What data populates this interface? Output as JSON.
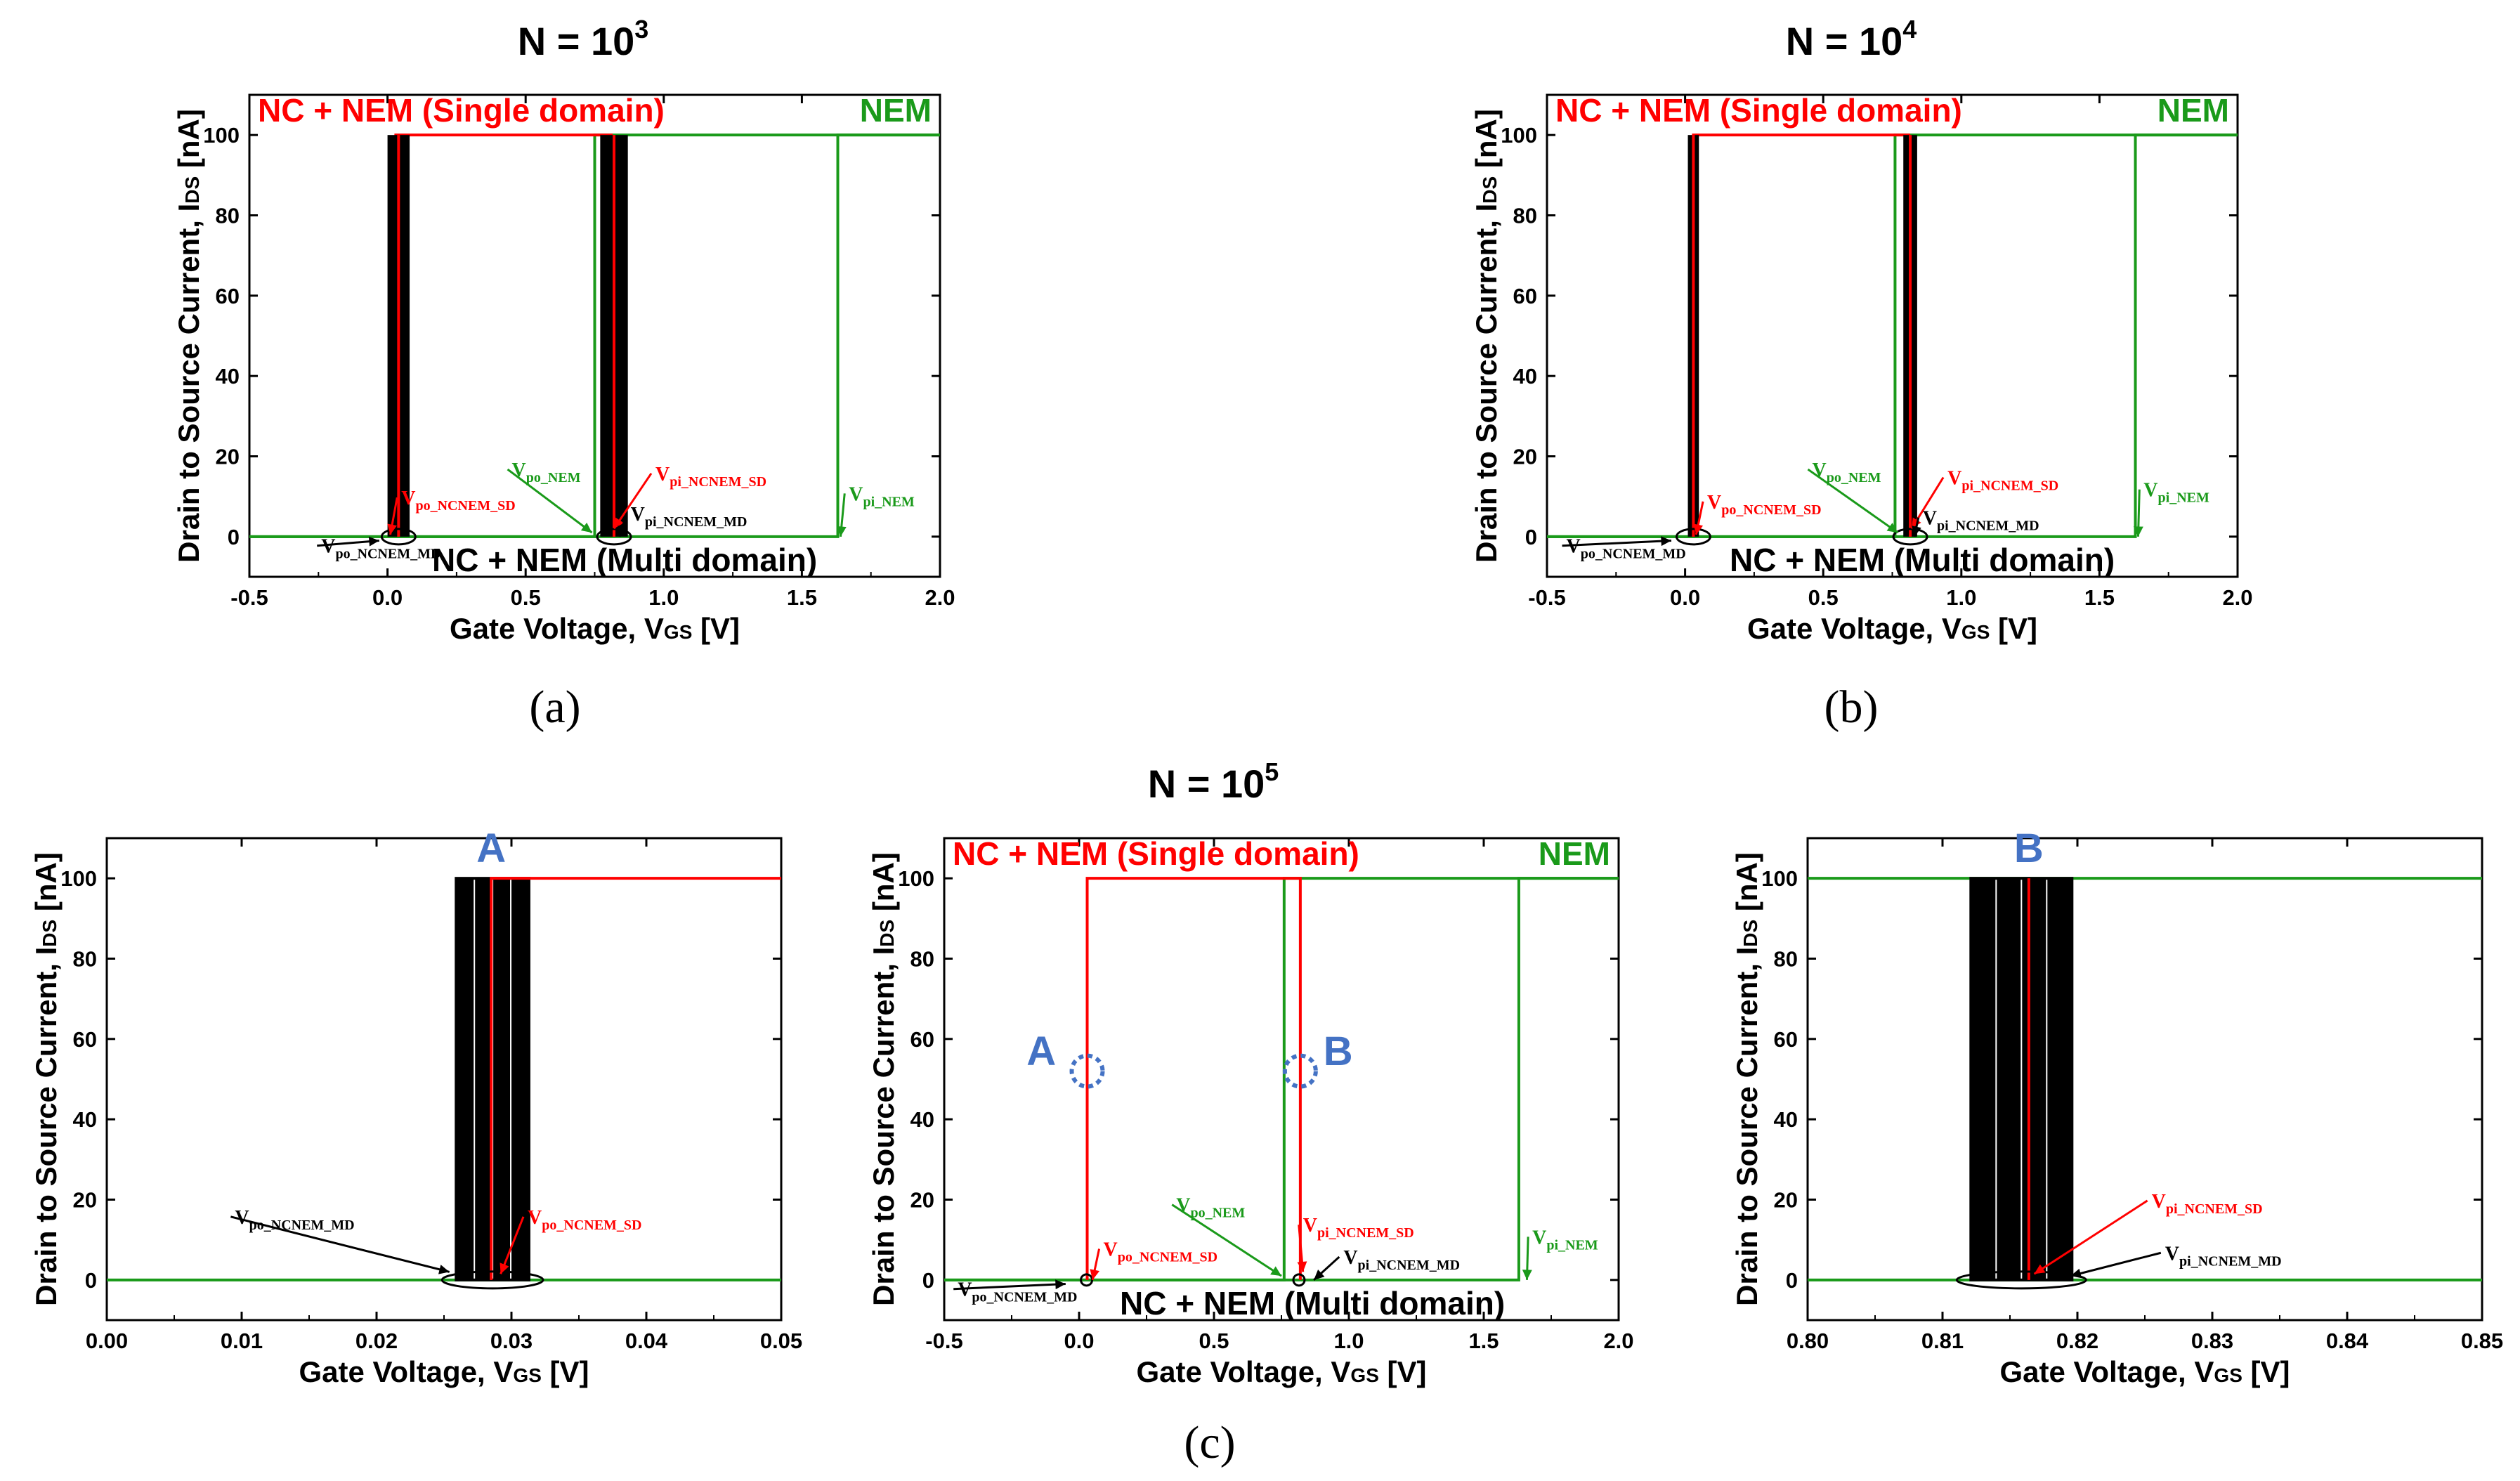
{
  "colors": {
    "single_domain": "#ff0000",
    "nem": "#1a9a1a",
    "multi_domain": "#000000",
    "marker": "#4472c4"
  },
  "titles": {
    "a": "N = 10",
    "a_exp": "3",
    "b": "N = 10",
    "b_exp": "4",
    "c": "N = 10",
    "c_exp": "5"
  },
  "subfigure_labels": {
    "a": "(a)",
    "b": "(b)",
    "c": "(c)"
  },
  "chart_data": [
    {
      "id": "a",
      "type": "line",
      "title": "N = 10^3",
      "xlabel": "Gate Voltage, V",
      "xlabel_sub": "GS",
      "xlabel_unit": " [V]",
      "ylabel": "Drain to Source Current, I",
      "ylabel_sub": "DS",
      "ylabel_unit": " [nA]",
      "xlim": [
        -0.5,
        2.0
      ],
      "ylim": [
        -10,
        110
      ],
      "xticks": [
        "-0.5",
        "0.0",
        "0.5",
        "1.0",
        "1.5",
        "2.0"
      ],
      "yticks": [
        "0",
        "20",
        "40",
        "60",
        "80",
        "100"
      ],
      "legend": [
        "NC + NEM (Single domain)",
        "NEM",
        "NC + NEM (Multi domain)"
      ],
      "series": [
        {
          "name": "NEM",
          "hysteresis": {
            "v_on": 1.63,
            "v_off": 0.75,
            "i_low": 0,
            "i_high": 100
          }
        },
        {
          "name": "NC + NEM (Single domain)",
          "hysteresis": {
            "v_on": 0.81,
            "v_off": 0.03,
            "i_low": 0,
            "i_high": 100
          }
        },
        {
          "name": "NC + NEM (Multi domain)",
          "bands": [
            [
              0.0,
              0.08
            ],
            [
              0.77,
              0.87
            ]
          ],
          "i_low": 0,
          "i_high": 100
        }
      ],
      "annotations": [
        {
          "text": "V",
          "sub": "po_NCNEM_MD",
          "series": "multi"
        },
        {
          "text": "V",
          "sub": "po_NCNEM_SD",
          "series": "single"
        },
        {
          "text": "V",
          "sub": "po_NEM",
          "series": "nem"
        },
        {
          "text": "V",
          "sub": "pi_NCNEM_SD",
          "series": "single"
        },
        {
          "text": "V",
          "sub": "pi_NCNEM_MD",
          "series": "multi"
        },
        {
          "text": "V",
          "sub": "pi_NEM",
          "series": "nem"
        }
      ]
    },
    {
      "id": "b",
      "type": "line",
      "title": "N = 10^4",
      "xlabel": "Gate Voltage, V",
      "xlabel_sub": "GS",
      "xlabel_unit": " [V]",
      "ylabel": "Drain to Source Current, I",
      "ylabel_sub": "DS",
      "ylabel_unit": " [nA]",
      "xlim": [
        -0.5,
        2.0
      ],
      "ylim": [
        -10,
        110
      ],
      "xticks": [
        "-0.5",
        "0.0",
        "0.5",
        "1.0",
        "1.5",
        "2.0"
      ],
      "yticks": [
        "0",
        "20",
        "40",
        "60",
        "80",
        "100"
      ],
      "legend": [
        "NC + NEM (Single domain)",
        "NEM",
        "NC + NEM (Multi domain)"
      ],
      "series": [
        {
          "name": "NEM",
          "hysteresis": {
            "v_on": 1.63,
            "v_off": 0.76,
            "i_low": 0,
            "i_high": 100
          }
        },
        {
          "name": "NC + NEM (Single domain)",
          "hysteresis": {
            "v_on": 0.81,
            "v_off": 0.03,
            "i_low": 0,
            "i_high": 100
          }
        },
        {
          "name": "NC + NEM (Multi domain)",
          "bands": [
            [
              0.01,
              0.05
            ],
            [
              0.79,
              0.84
            ]
          ],
          "i_low": 0,
          "i_high": 100
        }
      ],
      "annotations": [
        {
          "text": "V",
          "sub": "po_NCNEM_MD",
          "series": "multi"
        },
        {
          "text": "V",
          "sub": "po_NCNEM_SD",
          "series": "single"
        },
        {
          "text": "V",
          "sub": "po_NEM",
          "series": "nem"
        },
        {
          "text": "V",
          "sub": "pi_NCNEM_SD",
          "series": "single"
        },
        {
          "text": "V",
          "sub": "pi_NCNEM_MD",
          "series": "multi"
        },
        {
          "text": "V",
          "sub": "pi_NEM",
          "series": "nem"
        }
      ]
    },
    {
      "id": "c_left",
      "type": "line",
      "title": "",
      "xlabel": "Gate Voltage, V",
      "xlabel_sub": "GS",
      "xlabel_unit": " [V]",
      "ylabel": "Drain to Source Current, I",
      "ylabel_sub": "DS",
      "ylabel_unit": " [nA]",
      "xlim": [
        0.0,
        0.05
      ],
      "ylim": [
        -10,
        110
      ],
      "xticks": [
        "0.00",
        "0.01",
        "0.02",
        "0.03",
        "0.04",
        "0.05"
      ],
      "yticks": [
        "0",
        "20",
        "40",
        "60",
        "80",
        "100"
      ],
      "marker": "A",
      "series": [
        {
          "name": "NC + NEM (Single domain)",
          "step_at": 0.0285,
          "i_low": 0,
          "i_high": 100
        },
        {
          "name": "NEM",
          "level": 0
        },
        {
          "name": "NC + NEM (Multi domain)",
          "band": [
            0.0259,
            0.0313
          ]
        }
      ],
      "annotations": [
        {
          "text": "V",
          "sub": "po_NCNEM_MD",
          "series": "multi"
        },
        {
          "text": "V",
          "sub": "po_NCNEM_SD",
          "series": "single"
        }
      ]
    },
    {
      "id": "c_mid",
      "type": "line",
      "title": "N = 10^5",
      "xlabel": "Gate Voltage, V",
      "xlabel_sub": "GS",
      "xlabel_unit": " [V]",
      "ylabel": "Drain to Source Current, I",
      "ylabel_sub": "DS",
      "ylabel_unit": " [nA]",
      "xlim": [
        -0.5,
        2.0
      ],
      "ylim": [
        -10,
        110
      ],
      "xticks": [
        "-0.5",
        "0.0",
        "0.5",
        "1.0",
        "1.5",
        "2.0"
      ],
      "yticks": [
        "0",
        "20",
        "40",
        "60",
        "80",
        "100"
      ],
      "legend": [
        "NC + NEM (Single domain)",
        "NEM",
        "NC + NEM (Multi domain)"
      ],
      "markers": [
        "A",
        "B"
      ],
      "series": [
        {
          "name": "NEM",
          "hysteresis": {
            "v_on": 1.63,
            "v_off": 0.76,
            "i_low": 0,
            "i_high": 100
          }
        },
        {
          "name": "NC + NEM (Single domain)",
          "hysteresis": {
            "v_on": 0.82,
            "v_off": 0.03,
            "i_low": 0,
            "i_high": 100
          }
        },
        {
          "name": "NC + NEM (Multi domain)",
          "bands": [
            [
              0.02,
              0.035
            ],
            [
              0.81,
              0.82
            ]
          ],
          "i_low": 0,
          "i_high": 100
        }
      ],
      "annotations": [
        {
          "text": "V",
          "sub": "po_NCNEM_MD",
          "series": "multi"
        },
        {
          "text": "V",
          "sub": "po_NCNEM_SD",
          "series": "single"
        },
        {
          "text": "V",
          "sub": "po_NEM",
          "series": "nem"
        },
        {
          "text": "V",
          "sub": "pi_NCNEM_SD",
          "series": "single"
        },
        {
          "text": "V",
          "sub": "pi_NCNEM_MD",
          "series": "multi"
        },
        {
          "text": "V",
          "sub": "pi_NEM",
          "series": "nem"
        }
      ]
    },
    {
      "id": "c_right",
      "type": "line",
      "title": "",
      "xlabel": "Gate Voltage, V",
      "xlabel_sub": "GS",
      "xlabel_unit": " [V]",
      "ylabel": "Drain to Source Current, I",
      "ylabel_sub": "DS",
      "ylabel_unit": " [nA]",
      "xlim": [
        0.8,
        0.85
      ],
      "ylim": [
        -10,
        110
      ],
      "xticks": [
        "0.80",
        "0.81",
        "0.82",
        "0.83",
        "0.84",
        "0.85"
      ],
      "yticks": [
        "0",
        "20",
        "40",
        "60",
        "80",
        "100"
      ],
      "marker": "B",
      "series": [
        {
          "name": "NC + NEM (Single domain)",
          "step_at": 0.8164,
          "i_low": 0,
          "i_high": 100
        },
        {
          "name": "NEM",
          "levels": [
            0,
            100
          ]
        },
        {
          "name": "NC + NEM (Multi domain)",
          "band": [
            0.8121,
            0.8196
          ]
        }
      ],
      "annotations": [
        {
          "text": "V",
          "sub": "pi_NCNEM_SD",
          "series": "single"
        },
        {
          "text": "V",
          "sub": "pi_NCNEM_MD",
          "series": "multi"
        }
      ]
    }
  ]
}
